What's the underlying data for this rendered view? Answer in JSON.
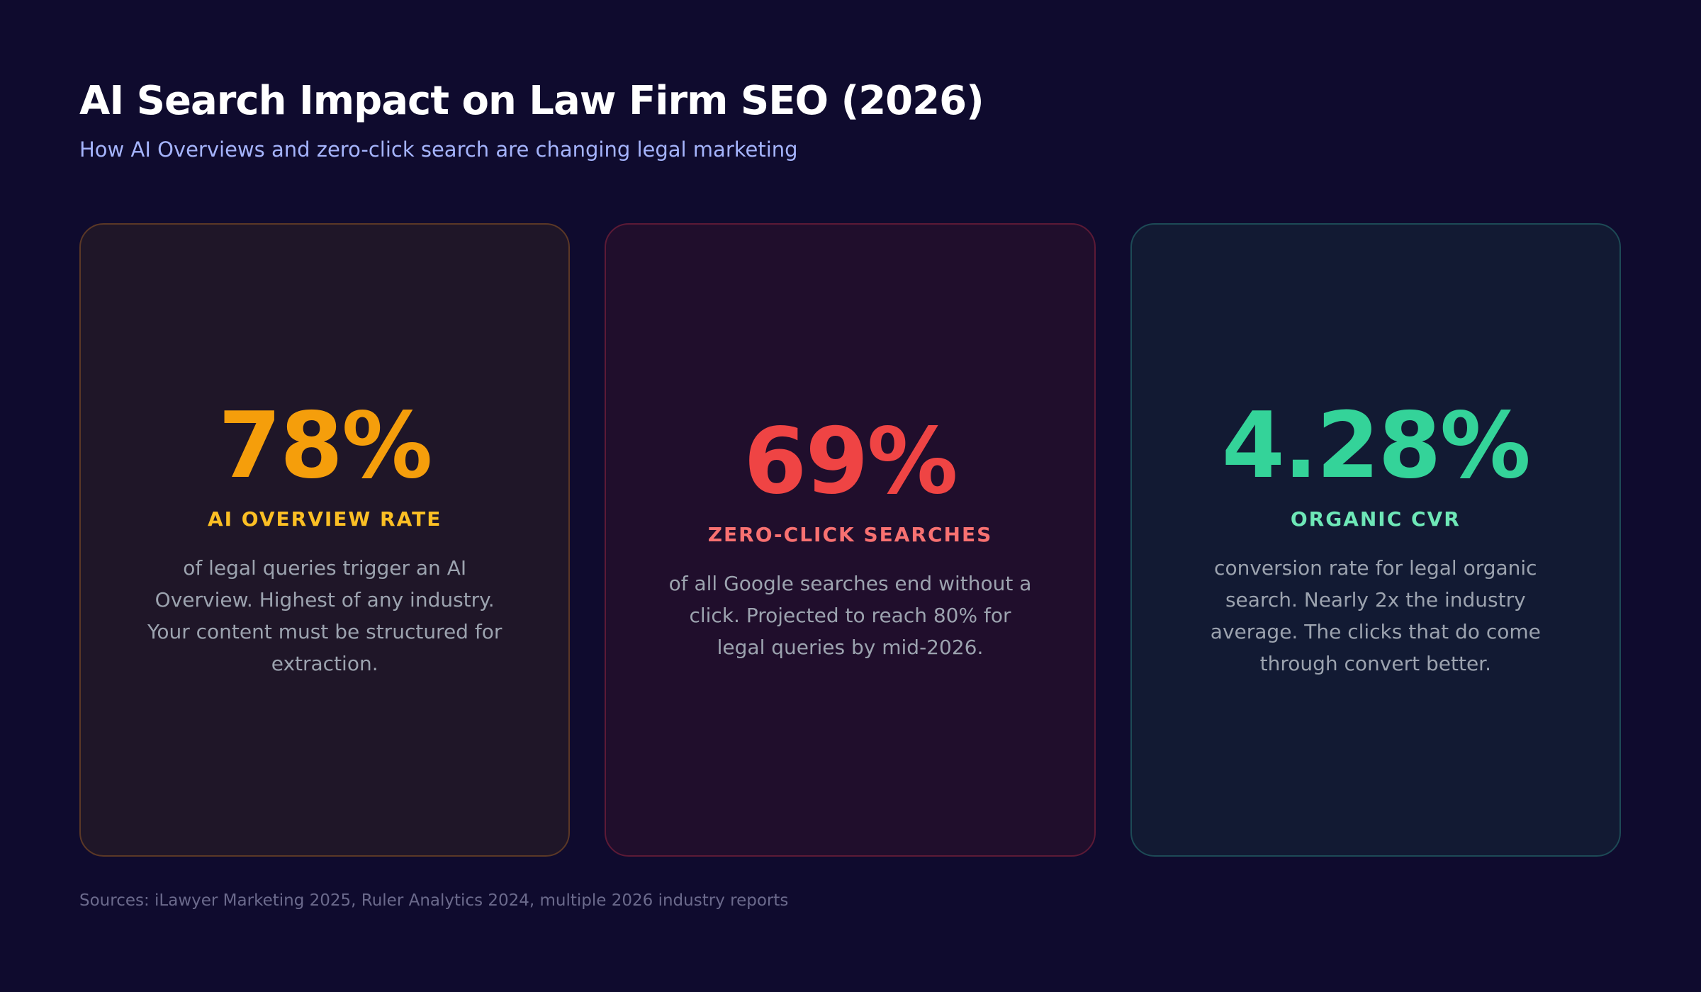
{
  "header": {
    "title": "AI Search Impact on Law Firm SEO (2026)",
    "subtitle": "How AI Overviews and zero-click search are changing legal marketing"
  },
  "cards": [
    {
      "value": "78%",
      "label": "AI OVERVIEW RATE",
      "description": "of legal queries trigger an AI Overview. Highest of any industry. Your content must be structured for extraction."
    },
    {
      "value": "69%",
      "label": "ZERO-CLICK SEARCHES",
      "description": "of all Google searches end without a click. Projected to reach 80% for legal queries by mid-2026."
    },
    {
      "value": "4.28%",
      "label": "ORGANIC CVR",
      "description": "conversion rate for legal organic search. Nearly 2x the industry average. The clicks that do come through convert better."
    }
  ],
  "footer": {
    "source": "Sources: iLawyer Marketing 2025, Ruler Analytics 2024, multiple 2026 industry reports"
  }
}
